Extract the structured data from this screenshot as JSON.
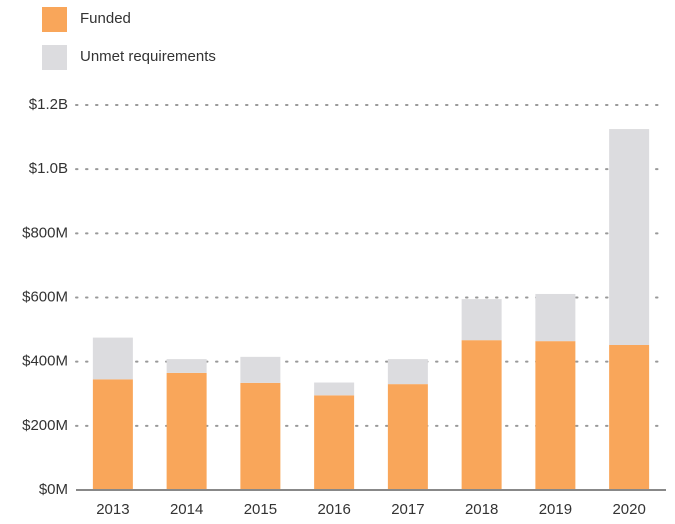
{
  "chart_data": {
    "type": "stacked_bar",
    "categories": [
      "2013",
      "2014",
      "2015",
      "2016",
      "2017",
      "2018",
      "2019",
      "2020"
    ],
    "series": [
      {
        "name": "Funded",
        "color": "#f9a65a",
        "values": [
          345000000,
          365000000,
          334000000,
          295000000,
          330000000,
          467000000,
          464000000,
          452000000
        ]
      },
      {
        "name": "Unmet requirements",
        "color": "#dcdcdf",
        "values": [
          130000000,
          43000000,
          81000000,
          40000000,
          78000000,
          128000000,
          147000000,
          673000000
        ]
      }
    ],
    "ylim": [
      0,
      1200000000
    ],
    "yticks": [
      {
        "value": 0,
        "label": "$0M"
      },
      {
        "value": 200000000,
        "label": "$200M"
      },
      {
        "value": 400000000,
        "label": "$400M"
      },
      {
        "value": 600000000,
        "label": "$600M"
      },
      {
        "value": 800000000,
        "label": "$800M"
      },
      {
        "value": 1000000000,
        "label": "$1.0B"
      },
      {
        "value": 1200000000,
        "label": "$1.2B"
      }
    ],
    "grid": true
  }
}
